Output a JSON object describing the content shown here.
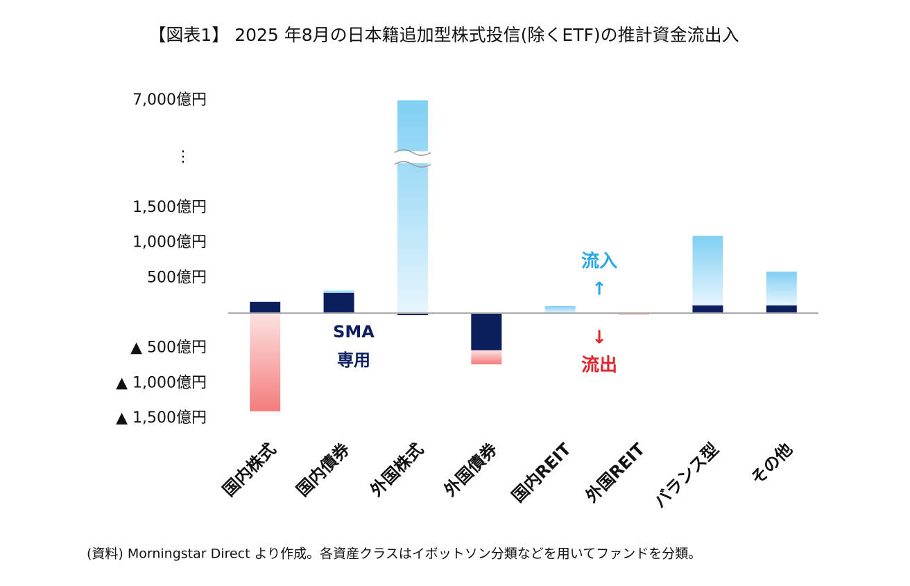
{
  "chart_data": {
    "type": "stacked_bar",
    "title": "【図表1】 2025 年8月の日本籍追加型株式投信(除くETF)の推計資金流出入",
    "categories": [
      "国内株式",
      "国内債券",
      "外国株式",
      "外国債券",
      "国内REIT",
      "外国REIT",
      "バランス型",
      "その他"
    ],
    "series": [
      {
        "color": "#0b1f5e",
        "values": [
          160,
          290,
          -30,
          -530,
          0,
          0,
          110,
          110
        ]
      },
      {
        "color": "#7fcff4",
        "color_negative": "#f47c7c",
        "values": [
          -1400,
          30,
          7000,
          -200,
          100,
          -20,
          990,
          480
        ]
      }
    ],
    "ylim": [
      -1500,
      7000
    ],
    "y_break": 2100,
    "y_break_label": "⋮",
    "yticks": [
      {
        "value": 7000,
        "label": "7,000億円"
      },
      {
        "value": 1500,
        "label": "1,500億円"
      },
      {
        "value": 1000,
        "label": "1,000億円"
      },
      {
        "value": 500,
        "label": "500億円"
      },
      {
        "value": -500,
        "label": "▲ 500億円"
      },
      {
        "value": -1000,
        "label": "▲ 1,000億円"
      },
      {
        "value": -1500,
        "label": "▲ 1,500億円"
      }
    ],
    "grid": false,
    "annotations": {
      "sma": [
        "SMA",
        "専用"
      ],
      "inflow": "流入",
      "inflow_arrow": "↑",
      "outflow_arrow": "↓",
      "outflow": "流出"
    },
    "note": "(資料) Morningstar Direct より作成。各資産クラスはイボットソン分類などを用いてファンドを分類。"
  }
}
